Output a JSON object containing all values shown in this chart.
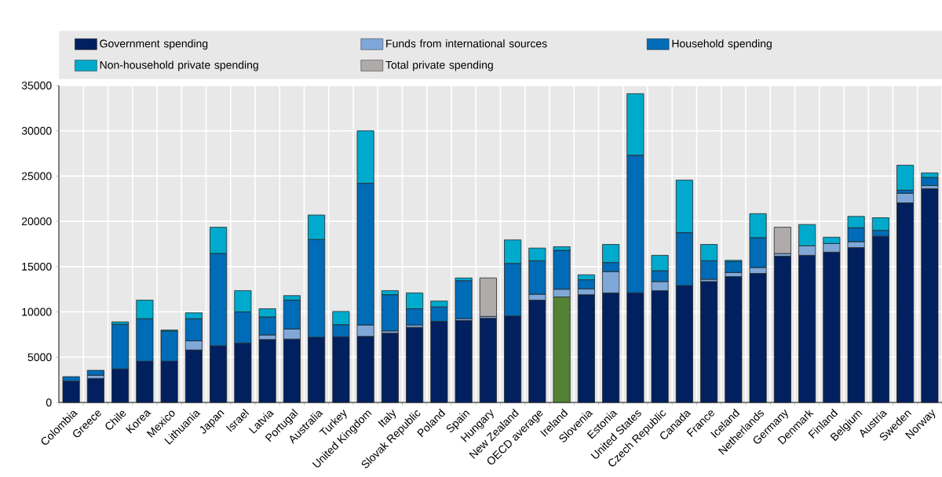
{
  "chart_data": {
    "type": "bar",
    "stacked": true,
    "categories": [
      "Colombia",
      "Greece",
      "Chile",
      "Korea",
      "Mexico",
      "Lithuania",
      "Japan",
      "Israel",
      "Latvia",
      "Portugal",
      "Australia",
      "Turkey",
      "United Kingdom",
      "Italy",
      "Slovak Republic",
      "Poland",
      "Spain",
      "Hungary",
      "New Zealand",
      "OECD average",
      "Ireland",
      "Slovenia",
      "Estonia",
      "United States",
      "Czech Republic",
      "Canada",
      "France",
      "Iceland",
      "Netherlands",
      "Germany",
      "Denmark",
      "Finland",
      "Belgium",
      "Austria",
      "Sweden",
      "Norway"
    ],
    "series": [
      {
        "name": "Government spending",
        "color": "#002060",
        "colors": [
          "#002060",
          "#002060",
          "#002060",
          "#002060",
          "#002060",
          "#002060",
          "#002060",
          "#002060",
          "#002060",
          "#002060",
          "#002060",
          "#002060",
          "#002060",
          "#002060",
          "#002060",
          "#002060",
          "#002060",
          "#002060",
          "#002060",
          "#002060",
          "#548235",
          "#002060",
          "#002060",
          "#002060",
          "#002060",
          "#002060",
          "#002060",
          "#002060",
          "#002060",
          "#002060",
          "#002060",
          "#002060",
          "#002060",
          "#002060",
          "#002060",
          "#002060"
        ],
        "values": [
          2350,
          2650,
          3700,
          4550,
          4550,
          5800,
          6250,
          6550,
          6950,
          7000,
          7200,
          7250,
          7300,
          7650,
          8300,
          8950,
          9050,
          9300,
          9550,
          11300,
          11650,
          11900,
          12100,
          12100,
          12350,
          12900,
          13350,
          13900,
          14250,
          16150,
          16250,
          16600,
          17100,
          18350,
          22050,
          23600
        ]
      },
      {
        "name": "Funds from international sources",
        "color": "#7fa8d9",
        "values": [
          null,
          350,
          null,
          null,
          null,
          1000,
          null,
          null,
          500,
          1100,
          null,
          null,
          1250,
          250,
          250,
          null,
          200,
          200,
          null,
          650,
          850,
          650,
          2350,
          null,
          1000,
          null,
          250,
          450,
          650,
          300,
          1050,
          950,
          650,
          null,
          1050,
          350
        ]
      },
      {
        "name": "Household spending",
        "color": "#006bb6",
        "values": [
          500,
          550,
          4950,
          4700,
          3350,
          2450,
          10200,
          3450,
          2000,
          3200,
          10800,
          1350,
          15650,
          4000,
          1800,
          1600,
          4200,
          null,
          5800,
          3700,
          4300,
          1000,
          1000,
          15200,
          1200,
          5850,
          2050,
          1200,
          3300,
          null,
          null,
          null,
          1550,
          650,
          350,
          900
        ]
      },
      {
        "name": "Non-household private spending",
        "color": "#00aacc",
        "values": [
          null,
          null,
          250,
          2050,
          100,
          650,
          2900,
          2350,
          900,
          500,
          2700,
          1450,
          5800,
          450,
          1750,
          650,
          300,
          null,
          2600,
          1400,
          400,
          550,
          2000,
          6800,
          1700,
          5800,
          1800,
          150,
          2650,
          null,
          2350,
          700,
          1250,
          1400,
          2750,
          500
        ]
      },
      {
        "name": "Total private spending",
        "color": "#afabab",
        "values": [
          null,
          null,
          null,
          null,
          null,
          null,
          null,
          null,
          null,
          null,
          null,
          null,
          null,
          null,
          null,
          null,
          null,
          4250,
          null,
          null,
          null,
          null,
          null,
          null,
          null,
          null,
          null,
          null,
          null,
          2900,
          null,
          null,
          null,
          null,
          null,
          null
        ]
      }
    ],
    "ylim": [
      0,
      35000
    ],
    "yticks": [
      0,
      5000,
      10000,
      15000,
      20000,
      25000,
      30000,
      35000
    ],
    "grid": true,
    "legend": "top"
  }
}
